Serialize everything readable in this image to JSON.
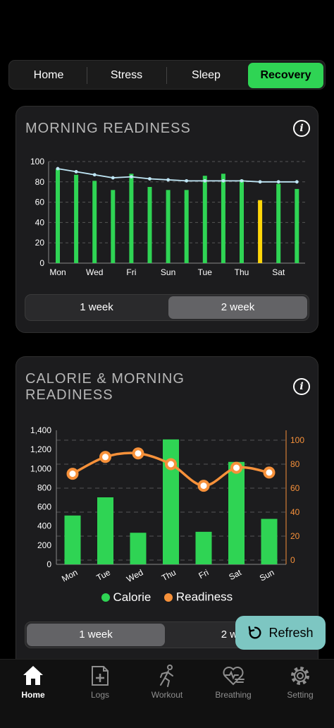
{
  "tabs": [
    {
      "label": "Home",
      "active": false
    },
    {
      "label": "Stress",
      "active": false
    },
    {
      "label": "Sleep",
      "active": false
    },
    {
      "label": "Recovery",
      "active": true
    }
  ],
  "readiness_card": {
    "title": "MORNING READINESS",
    "range_options": [
      {
        "label": "1 week",
        "active": false
      },
      {
        "label": "2 week",
        "active": true
      }
    ]
  },
  "calorie_card": {
    "title_line1": "CALORIE & MORNING",
    "title_line2": "READINESS",
    "range_options": [
      {
        "label": "1 week",
        "active": true
      },
      {
        "label": "2 week",
        "active": false
      }
    ]
  },
  "refresh_label": "Refresh",
  "bottom_nav": [
    {
      "label": "Home",
      "icon": "home-icon",
      "active": true
    },
    {
      "label": "Logs",
      "icon": "logs-icon",
      "active": false
    },
    {
      "label": "Workout",
      "icon": "workout-icon",
      "active": false
    },
    {
      "label": "Breathing",
      "icon": "breathing-icon",
      "active": false
    },
    {
      "label": "Setting",
      "icon": "setting-icon",
      "active": false
    }
  ],
  "colors": {
    "green": "#2fd454",
    "yellow": "#ffd60a",
    "line_blue": "#bfe6f5",
    "orange": "#f7913a",
    "refresh_bg": "#7dc6c2"
  },
  "chart_data": [
    {
      "type": "bar",
      "categories": [
        "Mon",
        "Tue",
        "Wed",
        "Thu",
        "Fri",
        "Sat",
        "Sun",
        "Mon",
        "Tue",
        "Wed",
        "Thu",
        "Fri",
        "Sat",
        "Sun"
      ],
      "tick_labels": [
        "Mon",
        "Wed",
        "Fri",
        "Sun",
        "Tue",
        "Thu",
        "Sat"
      ],
      "series": [
        {
          "type": "bar",
          "values": [
            93,
            87,
            81,
            72,
            88,
            75,
            72,
            72,
            86,
            88,
            82,
            62,
            78,
            73
          ],
          "highlight_index": 11,
          "highlight_color": "#ffd60a"
        },
        {
          "type": "line",
          "values": [
            93,
            90,
            87,
            84,
            85,
            83,
            82,
            81,
            81,
            81,
            81,
            80,
            80,
            80
          ]
        }
      ],
      "y_ticks": [
        0,
        20,
        40,
        60,
        80,
        100
      ],
      "ylim": [
        0,
        100
      ],
      "grid": true
    },
    {
      "type": "bar",
      "categories": [
        "Mon",
        "Tue",
        "Wed",
        "Thu",
        "Fri",
        "Sat",
        "Sun"
      ],
      "series": [
        {
          "name": "Calorie",
          "type": "bar",
          "axis": "left",
          "values": [
            510,
            700,
            330,
            1305,
            340,
            1070,
            475
          ]
        },
        {
          "name": "Readiness",
          "type": "line",
          "axis": "right",
          "values": [
            72,
            86,
            89,
            80,
            62,
            77,
            73
          ]
        }
      ],
      "y_left_ticks": [
        "0",
        "200",
        "400",
        "600",
        "800",
        "1,000",
        "1,200",
        "1,400"
      ],
      "ylim_left": [
        0,
        1400
      ],
      "y_right_ticks": [
        0,
        20,
        40,
        60,
        80,
        100
      ],
      "ylim_right": [
        0,
        100
      ],
      "legend": "bottom",
      "grid": true
    }
  ]
}
